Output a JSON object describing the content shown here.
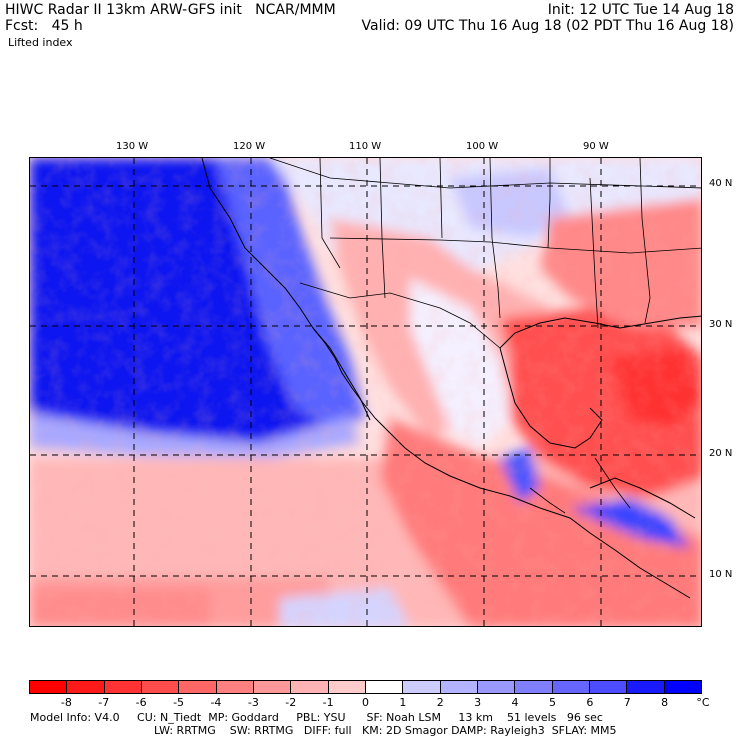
{
  "header": {
    "title_left": "HIWC Radar II 13km ARW-GFS init   NCAR/MMM",
    "fcst_label": "Fcst:   45 h",
    "field_name": "Lifted index",
    "init": "Init: 12 UTC Tue 14 Aug 18",
    "valid": "Valid: 09 UTC Thu 16 Aug 18 (02 PDT Thu 16 Aug 18)"
  },
  "map": {
    "lon_labels": [
      "130 W",
      "120 W",
      "110 W",
      "100 W",
      "90 W"
    ],
    "lon_values": [
      -130,
      -120,
      -110,
      -100,
      -90
    ],
    "lat_labels": [
      "40 N",
      "30 N",
      "20 N",
      "10 N"
    ],
    "lat_values": [
      40,
      30,
      20,
      10
    ],
    "extent": {
      "lon_min": -139,
      "lon_max": -81,
      "lat_min": 5.7,
      "lat_max": 40.4
    }
  },
  "colorbar": {
    "labels": [
      "-8",
      "-7",
      "-6",
      "-5",
      "-4",
      "-3",
      "-2",
      "-1",
      "0",
      "1",
      "2",
      "3",
      "4",
      "5",
      "6",
      "7",
      "8"
    ],
    "unit": "°C",
    "colors": [
      "#ff0000",
      "#ff1a1a",
      "#ff3333",
      "#ff4d4d",
      "#ff6666",
      "#ff8080",
      "#ff9999",
      "#ffb3b3",
      "#ffcccc",
      "#ffffff",
      "#ccccff",
      "#b3b3ff",
      "#9999ff",
      "#8080ff",
      "#6666ff",
      "#4d4dff",
      "#1a1aff",
      "#0000ff"
    ]
  },
  "footer": {
    "line1": "Model Info: V4.0     CU: N_Tiedt  MP: Goddard     PBL: YSU      SF: Noah LSM     13 km    51 levels   96 sec",
    "line2": "LW: RRTMG    SW: RRTMG   DIFF: full   KM: 2D Smagor DAMP: Rayleigh3  SFLAY: MM5"
  }
}
